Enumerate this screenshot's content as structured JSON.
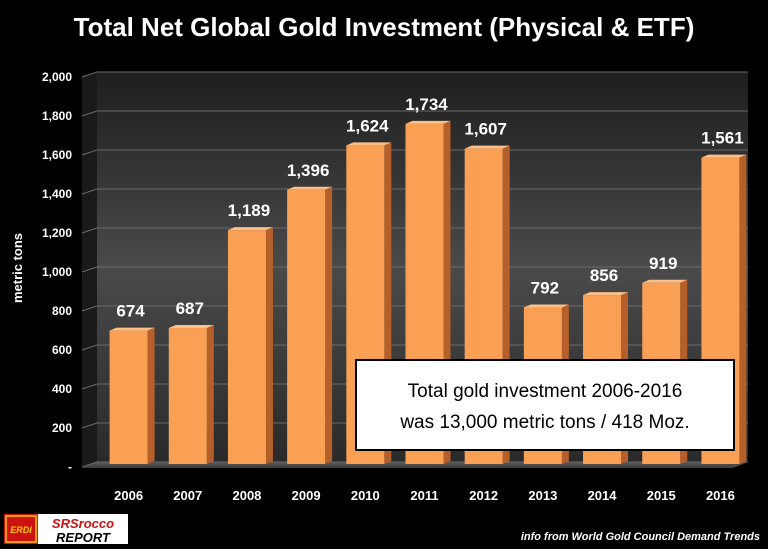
{
  "chart_data": {
    "type": "bar",
    "title": "Total Net Global Gold Investment (Physical & ETF)",
    "xlabel": "",
    "ylabel": "metric tons",
    "categories": [
      "2006",
      "2007",
      "2008",
      "2009",
      "2010",
      "2011",
      "2012",
      "2013",
      "2014",
      "2015",
      "2016"
    ],
    "values": [
      674,
      687,
      1189,
      1396,
      1624,
      1734,
      1607,
      792,
      856,
      919,
      1561
    ],
    "data_labels": [
      "674",
      "687",
      "1,189",
      "1,396",
      "1,624",
      "1,734",
      "1,607",
      "792",
      "856",
      "919",
      "1,561"
    ],
    "ylim": [
      0,
      2000
    ],
    "yticks": [
      0,
      200,
      400,
      600,
      800,
      1000,
      1200,
      1400,
      1600,
      1800,
      2000
    ],
    "ytick_labels": [
      "-",
      "200",
      "400",
      "600",
      "800",
      "1,000",
      "1,200",
      "1,400",
      "1,600",
      "1,800",
      "2,000"
    ],
    "grid": true,
    "legend": "none",
    "annotation": {
      "line1": "Total gold investment 2006-2016",
      "line2": "was 13,000 metric tons / 418 Moz."
    }
  },
  "source_note": "info from World Gold Council Demand Trends",
  "logo": {
    "badge": "ERDI",
    "line1": "SRSrocco",
    "line2": "REPORT"
  },
  "colors": {
    "bar_front": "#f9a055",
    "bar_side": "#b5602a",
    "bar_top": "#fcc08a",
    "plot_bg": "#3a3a3a",
    "background": "#000000",
    "annotation_bg": "#ffffff"
  }
}
